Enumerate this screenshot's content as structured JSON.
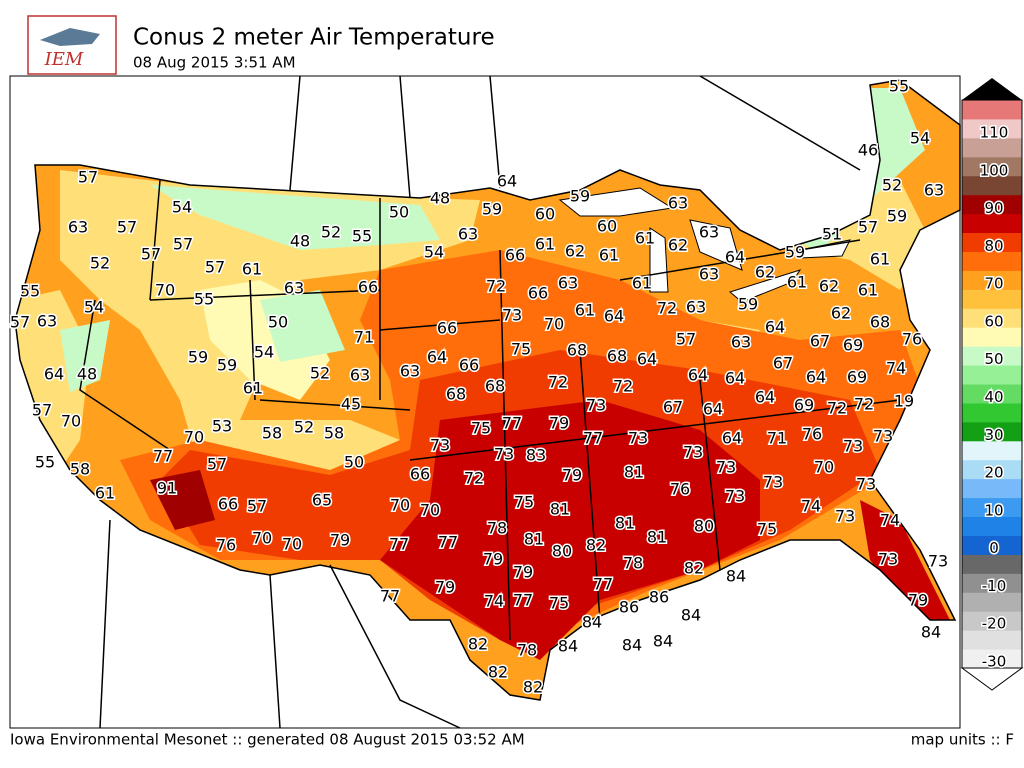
{
  "header": {
    "logo": "IEM",
    "title": "Conus 2 meter Air Temperature",
    "subtitle": "08 Aug 2015 3:51 AM"
  },
  "map": {
    "station_values": [
      55,
      54,
      46,
      52,
      63,
      59,
      57,
      51,
      64,
      59,
      57,
      54,
      48,
      50,
      59,
      60,
      60,
      63,
      63,
      61,
      62,
      63,
      57,
      57,
      48,
      52,
      55,
      63,
      61,
      62,
      61,
      54,
      66,
      64,
      59,
      61,
      52,
      57,
      57,
      61,
      63,
      62,
      55,
      70,
      55,
      63,
      66,
      72,
      66,
      63,
      61,
      61,
      62,
      61,
      54,
      57,
      63,
      50,
      73,
      70,
      61,
      64,
      72,
      63,
      59,
      62,
      68,
      71,
      66,
      57,
      64,
      63,
      67,
      69,
      76,
      54,
      59,
      59,
      64,
      66,
      75,
      68,
      68,
      64,
      67,
      52,
      63,
      63,
      64,
      48,
      61,
      68,
      68,
      72,
      72,
      64,
      64,
      64,
      69,
      74,
      45,
      73,
      64,
      69,
      72,
      72,
      19,
      57,
      70,
      67,
      64,
      53,
      58,
      52,
      58,
      75,
      77,
      79,
      70,
      73,
      77,
      73,
      64,
      71,
      76,
      73,
      73,
      77,
      73,
      83,
      50,
      55,
      58,
      57,
      66,
      72,
      79,
      81,
      73,
      73,
      70,
      91,
      61,
      65,
      66,
      57,
      70,
      70,
      75,
      81,
      76,
      73,
      73,
      73,
      81,
      74,
      73,
      74,
      78,
      80,
      76,
      70,
      70,
      79,
      77,
      77,
      81,
      80,
      82,
      81,
      75,
      79,
      79,
      78,
      82,
      84,
      73,
      73,
      79,
      77,
      86,
      77,
      74,
      77,
      75,
      86,
      84,
      79,
      84,
      84,
      82,
      84,
      84,
      84,
      78,
      82,
      82
    ]
  },
  "colorbar": {
    "ticks": [
      -30,
      -20,
      -10,
      0,
      10,
      20,
      30,
      40,
      50,
      60,
      70,
      80,
      90,
      100,
      110
    ],
    "colors": [
      "#f0f0f0",
      "#e0e0e0",
      "#c8c8c8",
      "#b0b0b0",
      "#909090",
      "#686868",
      "#1464d2",
      "#1e82e6",
      "#3c9bf0",
      "#78b9fa",
      "#aadcf5",
      "#e1f5fa",
      "#14a014",
      "#32c832",
      "#64dc64",
      "#96f096",
      "#c8fac8",
      "#fffab4",
      "#ffe078",
      "#ffc03c",
      "#ffa01e",
      "#ff6e0a",
      "#f03c00",
      "#c80000",
      "#a00000",
      "#784632",
      "#a07864",
      "#c8a096",
      "#f0c8c8",
      "#e67878"
    ]
  },
  "footer": {
    "credit": "Iowa Environmental Mesonet :: generated 08 August 2015 03:52 AM",
    "units": "map units :: F"
  }
}
